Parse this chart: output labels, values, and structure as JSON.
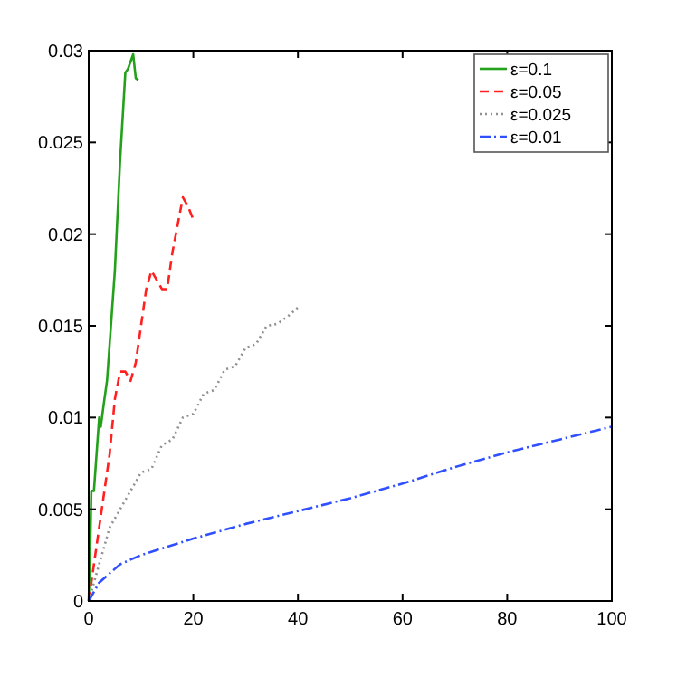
{
  "chart_data": {
    "type": "line",
    "xlim": [
      0,
      100
    ],
    "ylim": [
      0,
      0.03
    ],
    "xticks": [
      0,
      20,
      40,
      60,
      80,
      100
    ],
    "yticks": [
      0,
      0.005,
      0.01,
      0.015,
      0.02,
      0.025,
      0.03
    ],
    "grid": false,
    "legend": "top right",
    "series": [
      {
        "name": "ε=0.1",
        "color": "#23a11a",
        "line_style": "solid",
        "x": [
          0,
          0.3,
          0.5,
          1,
          1.5,
          2,
          2.3,
          3,
          3.5,
          4,
          5,
          6,
          7,
          7.5,
          8.5,
          9,
          9.5
        ],
        "values": [
          0,
          0.003,
          0.006,
          0.006,
          0.008,
          0.01,
          0.0095,
          0.011,
          0.012,
          0.014,
          0.018,
          0.024,
          0.0288,
          0.029,
          0.0298,
          0.0285,
          0.0284
        ]
      },
      {
        "name": "ε=0.05",
        "color": "#ff2020",
        "line_style": "dashed",
        "x": [
          0,
          1,
          2,
          3,
          4,
          5,
          6,
          7,
          8,
          9,
          10,
          11,
          12,
          13,
          14,
          15,
          16,
          18,
          19,
          20
        ],
        "values": [
          0,
          0.002,
          0.004,
          0.006,
          0.008,
          0.011,
          0.0125,
          0.0125,
          0.012,
          0.013,
          0.015,
          0.017,
          0.018,
          0.0175,
          0.017,
          0.017,
          0.019,
          0.022,
          0.0215,
          0.0208
        ]
      },
      {
        "name": "ε=0.025",
        "color": "#909090",
        "line_style": "dotted",
        "x": [
          0,
          2,
          4,
          6,
          8,
          10,
          12,
          14,
          16,
          18,
          20,
          22,
          24,
          26,
          28,
          30,
          32,
          34,
          36,
          38,
          40
        ],
        "values": [
          0,
          0.002,
          0.004,
          0.005,
          0.006,
          0.007,
          0.0072,
          0.0085,
          0.0088,
          0.01,
          0.0102,
          0.0113,
          0.0115,
          0.0126,
          0.0128,
          0.0138,
          0.014,
          0.015,
          0.0151,
          0.0155,
          0.016
        ]
      },
      {
        "name": "ε=0.01",
        "color": "#3050ff",
        "line_style": "dashdot",
        "x": [
          0,
          2,
          4,
          6,
          10,
          20,
          30,
          40,
          50,
          60,
          70,
          80,
          90,
          100
        ],
        "values": [
          0,
          0.001,
          0.0015,
          0.002,
          0.0025,
          0.0034,
          0.0042,
          0.0049,
          0.0056,
          0.0064,
          0.0073,
          0.0081,
          0.0088,
          0.0095
        ]
      }
    ]
  }
}
